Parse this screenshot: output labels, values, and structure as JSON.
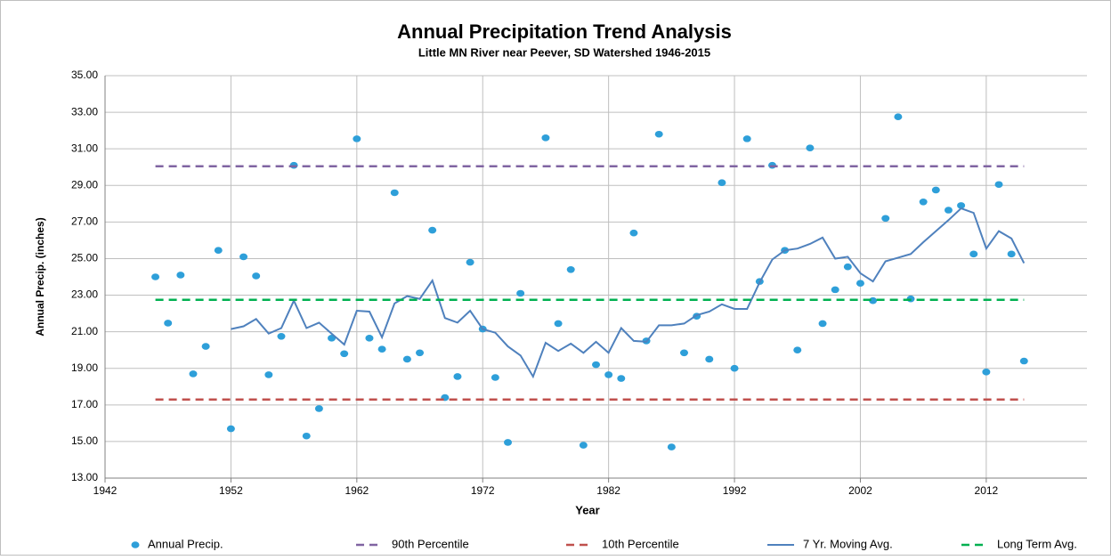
{
  "chart_data": {
    "type": "line",
    "title": "Annual Precipitation Trend Analysis",
    "subtitle": "Little MN River near Peever, SD Watershed 1946-2015",
    "x_label": "Year",
    "y_label": "Annual Precip. (inches)",
    "xlim": [
      1942,
      2020
    ],
    "xticks": [
      1942,
      1952,
      1962,
      1972,
      1982,
      1992,
      2002,
      2012
    ],
    "ylim": [
      13,
      35
    ],
    "yticks": [
      {
        "value": 13,
        "label": "13.00"
      },
      {
        "value": 15,
        "label": "15.00"
      },
      {
        "value": 17,
        "label": "17.00"
      },
      {
        "value": 19,
        "label": "19.00"
      },
      {
        "value": 21,
        "label": "21.00"
      },
      {
        "value": 23,
        "label": "23.00"
      },
      {
        "value": 25,
        "label": "25.00"
      },
      {
        "value": 27,
        "label": "27.00"
      },
      {
        "value": 29,
        "label": "29.00"
      },
      {
        "value": 31,
        "label": "31.00"
      },
      {
        "value": 33,
        "label": "33.00"
      },
      {
        "value": 35,
        "label": "35.00"
      }
    ],
    "grid": true,
    "legend": "bottom",
    "series": [
      {
        "name": "Annual Precip.",
        "type": "scatter",
        "color": "#2e9fd9",
        "x": [
          1946,
          1947,
          1948,
          1949,
          1950,
          1951,
          1952,
          1953,
          1954,
          1955,
          1956,
          1957,
          1958,
          1959,
          1960,
          1961,
          1962,
          1963,
          1964,
          1965,
          1966,
          1967,
          1968,
          1969,
          1970,
          1971,
          1972,
          1973,
          1974,
          1975,
          1977,
          1978,
          1979,
          1980,
          1981,
          1982,
          1983,
          1984,
          1985,
          1986,
          1987,
          1988,
          1989,
          1990,
          1991,
          1992,
          1993,
          1994,
          1995,
          1996,
          1997,
          1998,
          1999,
          2000,
          2001,
          2002,
          2003,
          2004,
          2005,
          2006,
          2007,
          2008,
          2009,
          2010,
          2011,
          2012,
          2013,
          2014,
          2015
        ],
        "values": [
          24.0,
          21.47,
          24.1,
          18.7,
          20.2,
          25.45,
          15.7,
          25.1,
          24.05,
          18.65,
          20.75,
          30.1,
          15.3,
          16.8,
          20.65,
          19.8,
          31.55,
          20.65,
          20.05,
          28.6,
          19.5,
          19.85,
          26.55,
          17.4,
          18.55,
          24.8,
          21.15,
          18.5,
          14.95,
          23.1,
          31.6,
          21.45,
          24.4,
          14.8,
          19.2,
          18.65,
          18.45,
          26.4,
          20.5,
          31.8,
          14.7,
          19.85,
          21.85,
          19.5,
          29.15,
          19.0,
          31.55,
          23.75,
          30.1,
          25.45,
          20.0,
          31.05,
          21.45,
          23.3,
          24.55,
          23.65,
          22.7,
          27.2,
          32.75,
          22.8,
          28.1,
          28.75,
          27.65,
          27.9,
          25.25,
          18.8,
          29.05,
          25.25,
          19.4
        ]
      },
      {
        "name": "90th Percentile",
        "type": "line",
        "dashed": true,
        "color": "#8064a2",
        "x": [
          1946,
          2015
        ],
        "values": [
          30.05,
          30.05
        ]
      },
      {
        "name": "10th Percentile",
        "type": "line",
        "dashed": true,
        "color": "#c0504d",
        "x": [
          1946,
          2015
        ],
        "values": [
          17.3,
          17.3
        ]
      },
      {
        "name": "7 Yr. Moving Avg.",
        "type": "line",
        "dashed": false,
        "color": "#4f81bd",
        "x": [
          1952,
          1953,
          1954,
          1955,
          1956,
          1957,
          1958,
          1959,
          1960,
          1961,
          1962,
          1963,
          1964,
          1965,
          1966,
          1967,
          1968,
          1969,
          1970,
          1971,
          1972,
          1973,
          1974,
          1975,
          1976,
          1977,
          1978,
          1979,
          1980,
          1981,
          1982,
          1983,
          1984,
          1985,
          1986,
          1987,
          1988,
          1989,
          1990,
          1991,
          1992,
          1993,
          1994,
          1995,
          1996,
          1997,
          1998,
          1999,
          2000,
          2001,
          2002,
          2003,
          2004,
          2005,
          2006,
          2007,
          2008,
          2009,
          2010,
          2011,
          2012,
          2013,
          2014,
          2015
        ],
        "values": [
          21.15,
          21.3,
          21.7,
          20.9,
          21.2,
          22.7,
          21.2,
          21.5,
          20.9,
          20.3,
          22.15,
          22.1,
          20.7,
          22.55,
          22.95,
          22.8,
          23.8,
          21.75,
          21.5,
          22.15,
          21.15,
          20.95,
          20.2,
          19.7,
          18.55,
          20.4,
          19.95,
          20.35,
          19.85,
          20.45,
          19.85,
          21.2,
          20.5,
          20.45,
          21.35,
          21.35,
          21.45,
          21.9,
          22.1,
          22.5,
          22.25,
          22.25,
          23.7,
          24.95,
          25.45,
          25.55,
          25.8,
          26.15,
          25.0,
          25.1,
          24.2,
          23.75,
          24.85,
          25.05,
          25.25,
          25.9,
          26.5,
          27.1,
          27.75,
          27.5,
          25.55,
          26.5,
          26.1,
          24.75
        ]
      },
      {
        "name": "Long Term Avg.",
        "type": "line",
        "dashed": true,
        "color": "#00b050",
        "x": [
          1946,
          2015
        ],
        "values": [
          22.75,
          22.75
        ]
      }
    ]
  }
}
